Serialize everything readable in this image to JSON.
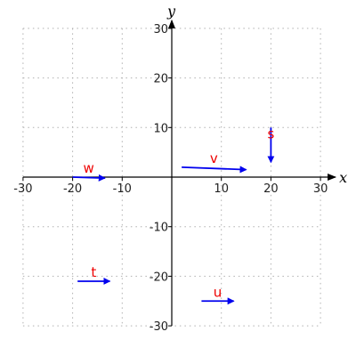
{
  "chart_data": {
    "type": "vector-field",
    "xlabel": "x",
    "ylabel": "y",
    "xlim": [
      -30,
      30
    ],
    "ylim": [
      -30,
      30
    ],
    "grid": true,
    "x_ticks": [
      -30,
      -20,
      -10,
      10,
      20,
      30
    ],
    "y_ticks": [
      -30,
      -20,
      -10,
      10,
      20,
      30
    ],
    "colors": {
      "arrow": "#0000ee",
      "label": "#ee0000",
      "axis": "#000000",
      "grid": "#b0b0b0"
    },
    "vectors": [
      {
        "label": "s",
        "x": 20,
        "y": 10,
        "dx": 0,
        "dy": -7
      },
      {
        "label": "v",
        "x": 2,
        "y": 2,
        "dx": 13,
        "dy": -0.5
      },
      {
        "label": "w",
        "x": -20,
        "y": 0,
        "dx": 6.5,
        "dy": -0.2
      },
      {
        "label": "t",
        "x": -19,
        "y": -21,
        "dx": 6.5,
        "dy": 0
      },
      {
        "label": "u",
        "x": 6,
        "y": -25,
        "dx": 6.5,
        "dy": 0
      }
    ]
  }
}
